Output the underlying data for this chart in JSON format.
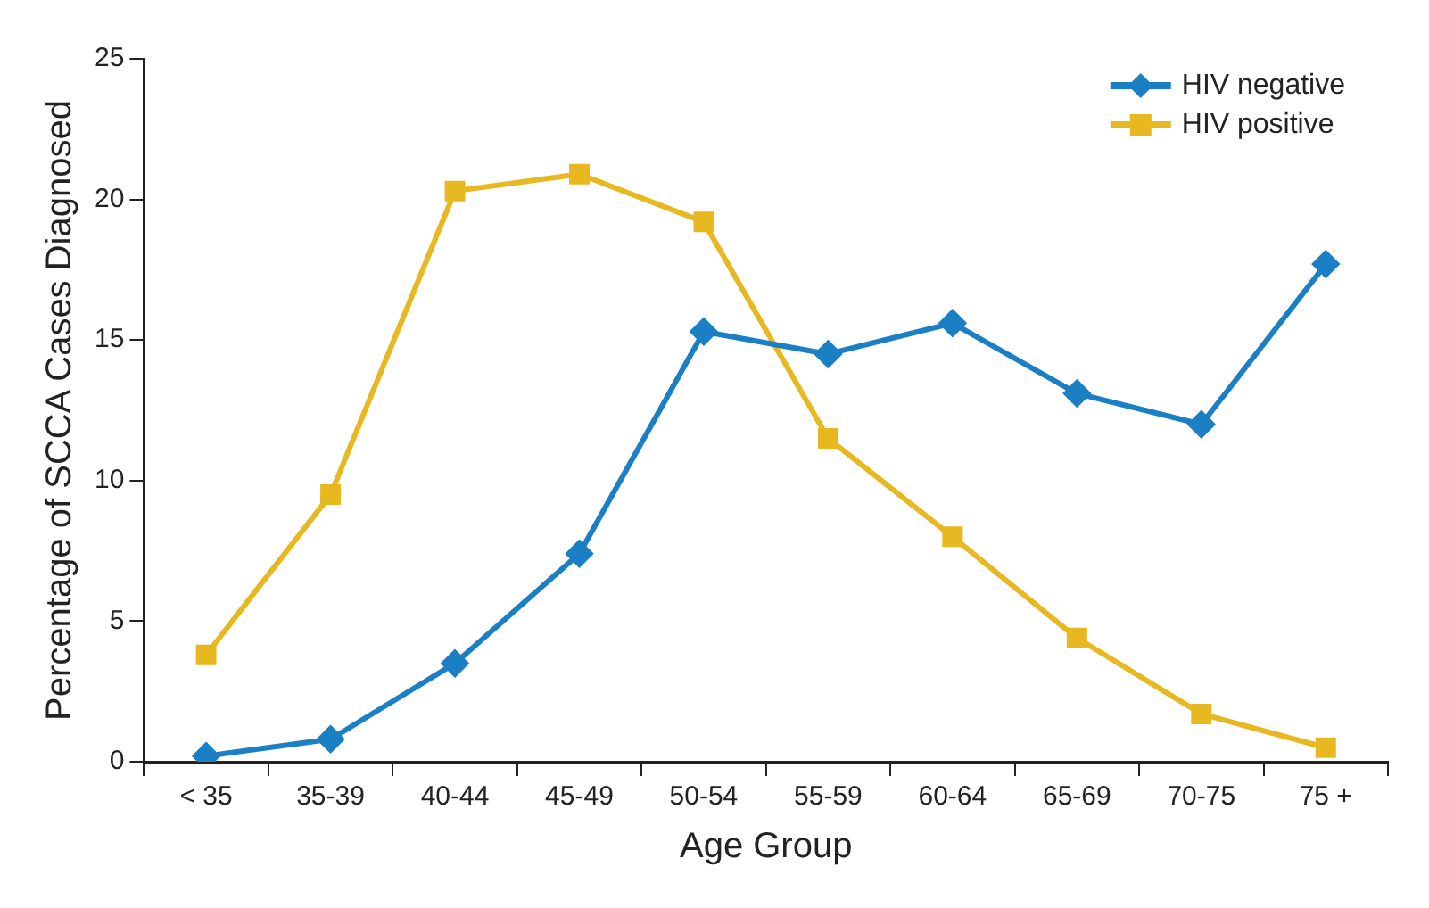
{
  "chart_data": {
    "type": "line",
    "xlabel": "Age Group",
    "ylabel": "Percentage of SCCA Cases Diagnosed",
    "categories": [
      "< 35",
      "35-39",
      "40-44",
      "45-49",
      "50-54",
      "55-59",
      "60-64",
      "65-69",
      "70-75",
      "75 +"
    ],
    "series": [
      {
        "name": "HIV negative",
        "color": "#1a7fc4",
        "marker": "diamond",
        "values": [
          0.2,
          0.8,
          3.5,
          7.4,
          15.3,
          14.5,
          15.6,
          13.1,
          12.0,
          17.7
        ]
      },
      {
        "name": "HIV positive",
        "color": "#e8b820",
        "marker": "square",
        "values": [
          3.8,
          9.5,
          20.3,
          20.9,
          19.2,
          11.5,
          8.0,
          4.4,
          1.7,
          0.5
        ]
      }
    ],
    "ylim": [
      0,
      25
    ],
    "yticks": [
      0,
      5,
      10,
      15,
      20,
      25
    ],
    "grid": false,
    "legend": "top right",
    "line_style": "solid"
  }
}
